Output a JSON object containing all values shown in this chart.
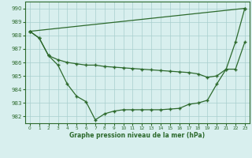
{
  "x": [
    0,
    1,
    2,
    3,
    4,
    5,
    6,
    7,
    8,
    9,
    10,
    11,
    12,
    13,
    14,
    15,
    16,
    17,
    18,
    19,
    20,
    21,
    22,
    23
  ],
  "line_diag": {
    "x": [
      0,
      23
    ],
    "y": [
      988.3,
      990.0
    ]
  },
  "line_flat": {
    "x": [
      0,
      1,
      2,
      3,
      4,
      5,
      6,
      7,
      8,
      9,
      10,
      11,
      12,
      13,
      14,
      15,
      16,
      17,
      18,
      19,
      20,
      21,
      22,
      23
    ],
    "y": [
      988.3,
      987.8,
      986.5,
      986.2,
      986.0,
      985.9,
      985.8,
      985.8,
      985.7,
      985.65,
      985.6,
      985.55,
      985.5,
      985.45,
      985.4,
      985.35,
      985.3,
      985.25,
      985.15,
      984.9,
      985.0,
      985.5,
      985.5,
      987.5
    ]
  },
  "line_zigzag": {
    "x": [
      0,
      1,
      2,
      3,
      4,
      5,
      6,
      7,
      8,
      9,
      10,
      11,
      12,
      13,
      14,
      15,
      16,
      17,
      18,
      19,
      20,
      21,
      22,
      23
    ],
    "y": [
      988.3,
      987.8,
      986.5,
      985.8,
      984.4,
      983.5,
      983.1,
      981.75,
      982.2,
      982.4,
      982.5,
      982.5,
      982.5,
      982.5,
      982.5,
      982.55,
      982.6,
      982.9,
      983.0,
      983.2,
      984.4,
      985.5,
      987.5,
      990.0
    ]
  },
  "ylim": [
    981.5,
    990.5
  ],
  "yticks": [
    982,
    983,
    984,
    985,
    986,
    987,
    988,
    989,
    990
  ],
  "xlim": [
    -0.5,
    23.5
  ],
  "line_color": "#2d6a2d",
  "bg_color": "#d8efee",
  "grid_color": "#a8cece",
  "xlabel": "Graphe pression niveau de la mer (hPa)"
}
